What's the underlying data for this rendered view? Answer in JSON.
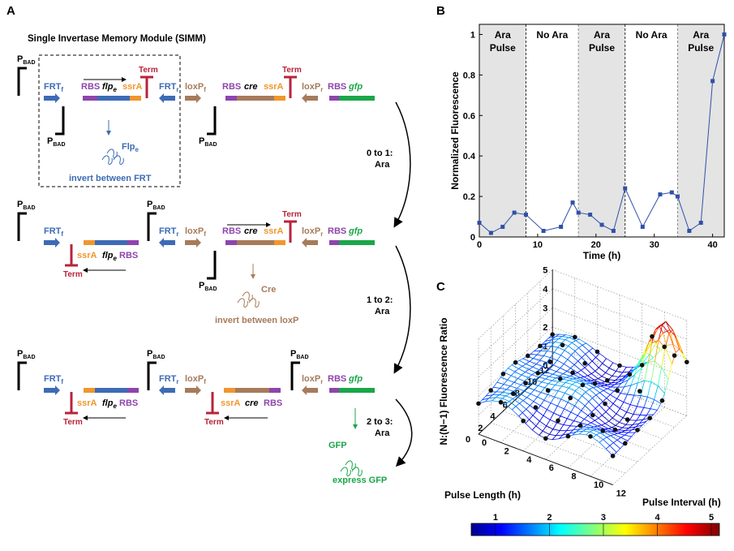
{
  "panels": {
    "A": "A",
    "B": "B",
    "C": "C"
  },
  "panelA": {
    "module_title": "Single Invertase Memory Module (SIMM)",
    "promoter": "P",
    "promoter_sub": "BAD",
    "frt_f": "FRT",
    "frt_r": "FRT",
    "f_sub": "f",
    "r_sub": "r",
    "loxp_f": "loxP",
    "loxp_r": "loxP",
    "rbs": "RBS",
    "flp": "flp",
    "flp_sub": "e",
    "cre": "cre",
    "gfp": "gfp",
    "ssra": "ssrA",
    "term": "Term",
    "flpe_protein": "Flp",
    "flpe_protein_sub": "e",
    "invert_frt": "invert between FRT",
    "cre_protein": "Cre",
    "invert_loxp": "invert between loxP",
    "gfp_protein": "GFP",
    "express_gfp": "express GFP",
    "transitions": [
      {
        "from_to": "0 to 1:",
        "inducer": "Ara"
      },
      {
        "from_to": "1 to 2:",
        "inducer": "Ara"
      },
      {
        "from_to": "2 to 3:",
        "inducer": "Ara"
      }
    ]
  },
  "colors": {
    "frt": "#3d6bb5",
    "loxp": "#a67b5b",
    "rbs": "#8e44ad",
    "flp_bar": "#3d6bb5",
    "cre_bar": "#a67b5b",
    "ssra": "#f0962d",
    "gfp": "#1aa64a",
    "term": "#b8233a"
  },
  "chart_data": [
    {
      "type": "line",
      "title": "",
      "xlabel": "Time (h)",
      "ylabel": "Normalized Fluorescence",
      "xlim": [
        0,
        42
      ],
      "ylim": [
        0,
        1.05
      ],
      "xticks": [
        0,
        10,
        20,
        30,
        40
      ],
      "yticks": [
        0,
        0.2,
        0.4,
        0.6,
        0.8,
        1
      ],
      "shaded_regions": [
        {
          "x": [
            0,
            8
          ],
          "label_line1": "Ara",
          "label_line2": "Pulse",
          "shaded": true
        },
        {
          "x": [
            8,
            17
          ],
          "label_line1": "No Ara",
          "label_line2": "",
          "shaded": false
        },
        {
          "x": [
            17,
            25
          ],
          "label_line1": "Ara",
          "label_line2": "Pulse",
          "shaded": true
        },
        {
          "x": [
            25,
            34
          ],
          "label_line1": "No Ara",
          "label_line2": "",
          "shaded": false
        },
        {
          "x": [
            34,
            42
          ],
          "label_line1": "Ara",
          "label_line2": "Pulse",
          "shaded": true
        }
      ],
      "x": [
        0,
        2,
        4,
        6,
        8,
        11,
        14,
        16,
        17,
        19,
        21,
        23,
        25,
        28,
        31,
        33,
        34,
        36,
        38,
        40,
        42
      ],
      "y": [
        0.07,
        0.02,
        0.05,
        0.12,
        0.11,
        0.03,
        0.05,
        0.17,
        0.12,
        0.11,
        0.06,
        0.03,
        0.24,
        0.05,
        0.21,
        0.22,
        0.2,
        0.03,
        0.07,
        0.77,
        1.0
      ],
      "color": "#3050a8"
    },
    {
      "type": "surface",
      "zlabel": "N:(N−1) Fluorescence Ratio",
      "ylabel": "Pulse Length (h)",
      "xlabel": "Pulse Interval (h)",
      "xlim": [
        0,
        12
      ],
      "ylim": [
        0,
        12
      ],
      "zlim": [
        0,
        5
      ],
      "xticks": [
        0,
        2,
        4,
        6,
        8,
        10,
        12
      ],
      "yticks": [
        0,
        2,
        4,
        6,
        8,
        10,
        12
      ],
      "zticks": [
        0,
        1,
        2,
        3,
        4,
        5
      ],
      "colorbar_ticks": [
        1,
        2,
        3,
        4,
        5
      ],
      "grid": true
    }
  ]
}
